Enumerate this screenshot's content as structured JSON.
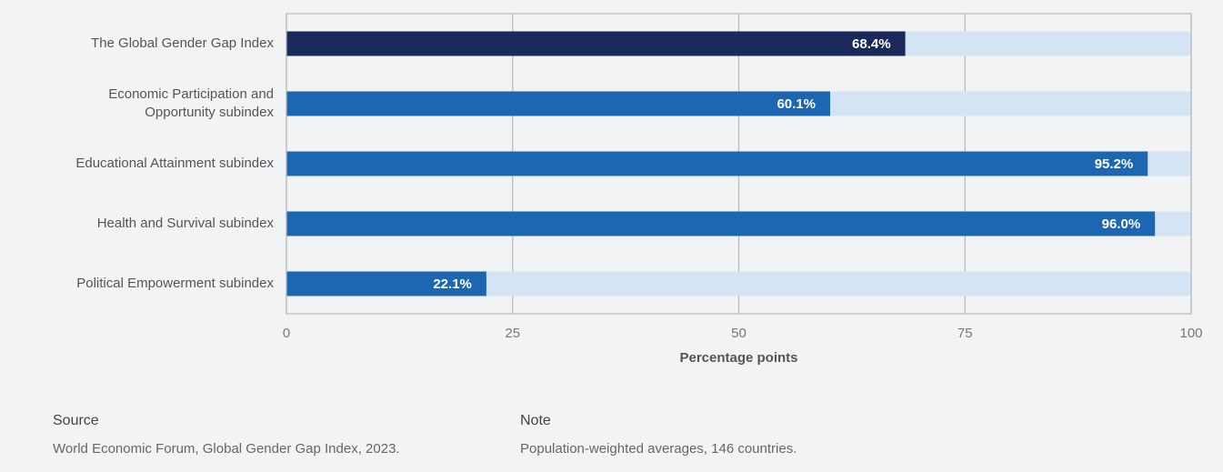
{
  "chart_data": {
    "type": "hbar",
    "categories": [
      "The Global Gender Gap Index",
      "Economic Participation and\nOpportunity subindex",
      "Educational Attainment subindex",
      "Health and Survival subindex",
      "Political Empowerment subindex"
    ],
    "values": [
      68.4,
      60.1,
      95.2,
      96.0,
      22.1
    ],
    "value_labels": [
      "68.4%",
      "60.1%",
      "95.2%",
      "96.0%",
      "22.1%"
    ],
    "colors": [
      "#18295a",
      "#1d67b2",
      "#1d67b2",
      "#1d67b2",
      "#1d67b2"
    ],
    "track_color": "#d5e4f4",
    "xlim": [
      0,
      100
    ],
    "xticks": [
      0,
      25,
      50,
      75,
      100
    ],
    "grid": true,
    "xlabel": "Percentage points"
  },
  "footer": {
    "source_heading": "Source",
    "source_text": "World Economic Forum, Global Gender Gap Index, 2023.",
    "note_heading": "Note",
    "note_text": "Population-weighted averages, 146 countries."
  }
}
